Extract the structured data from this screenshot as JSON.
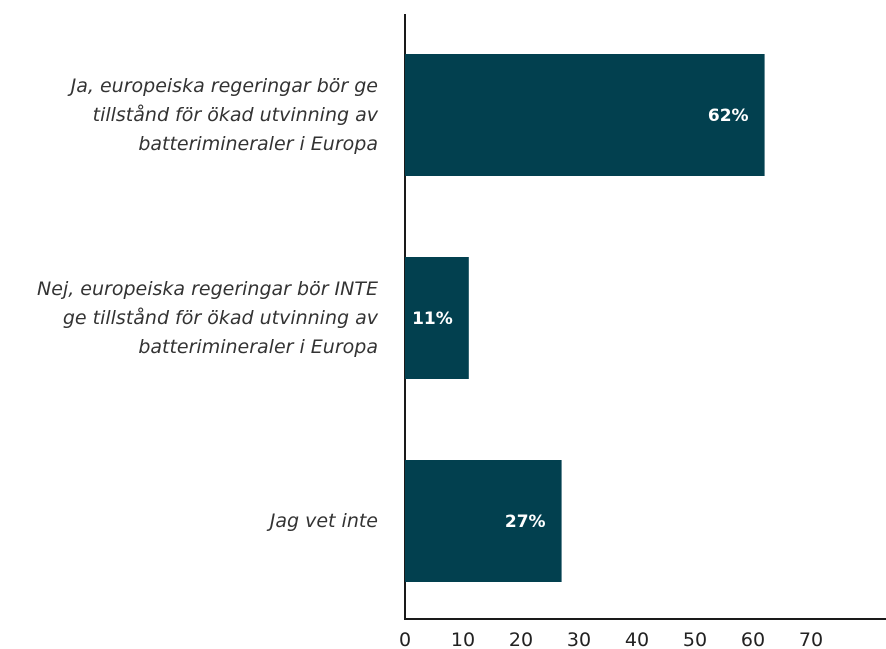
{
  "chart_data": {
    "type": "bar",
    "orientation": "horizontal",
    "categories": [
      [
        "Ja, europeiska regeringar bör ge",
        "tillstånd för ökad utvinning av",
        "batterimineraler i Europa"
      ],
      [
        "Nej, europeiska regeringar bör INTE",
        "ge tillstånd för ökad utvinning av",
        "batterimineraler i Europa"
      ],
      [
        "Jag vet inte"
      ]
    ],
    "values": [
      62,
      11,
      27
    ],
    "value_labels": [
      "62%",
      "11%",
      "27%"
    ],
    "xlim": [
      0,
      70
    ],
    "xticks": [
      "0",
      "10",
      "20",
      "30",
      "40",
      "50",
      "60",
      "70"
    ],
    "title": "",
    "xlabel": "",
    "ylabel": "",
    "grid": false,
    "legend": "none",
    "bar_color": "#02404f"
  }
}
